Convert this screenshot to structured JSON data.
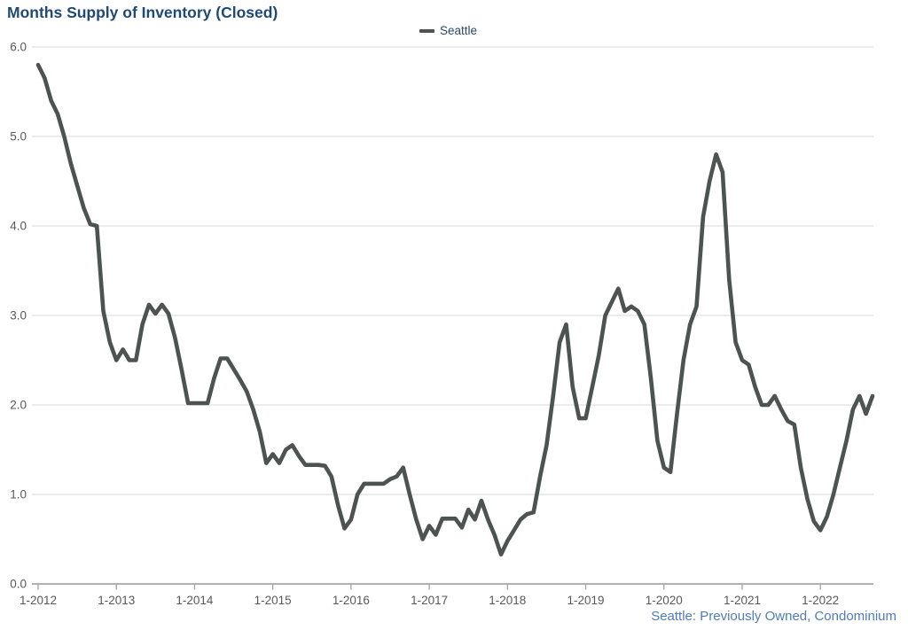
{
  "header": {
    "title": "Months Supply of Inventory (Closed)"
  },
  "legend": {
    "items": [
      {
        "label": "Seattle",
        "swatch_color": "#4d5350"
      }
    ]
  },
  "footer": {
    "caption": "Seattle: Previously Owned, Condominium"
  },
  "colors": {
    "title": "#1f4a75",
    "legend_text": "#2a4a68",
    "caption": "#4f7cb8",
    "line": "#4d5350",
    "gridline": "#d9d9d9",
    "axis": "#a6a6a6",
    "tick_text": "#595959"
  },
  "chart_data": {
    "type": "line",
    "title": "Months Supply of Inventory (Closed)",
    "xlabel": "",
    "ylabel": "",
    "ylim": [
      0,
      6
    ],
    "grid": "horizontal",
    "legend_position": "top-center",
    "caption": "Seattle: Previously Owned, Condominium",
    "y_tick_labels": [
      "0.0",
      "1.0",
      "2.0",
      "3.0",
      "4.0",
      "5.0",
      "6.0"
    ],
    "x_tick_labels": [
      "1-2012",
      "1-2013",
      "1-2014",
      "1-2015",
      "1-2016",
      "1-2017",
      "1-2018",
      "1-2019",
      "1-2020",
      "1-2021",
      "1-2022"
    ],
    "x_months_per_tick": 12,
    "series": [
      {
        "name": "Seattle",
        "color": "#4d5350",
        "frequency": "monthly",
        "x_start": "1-2012",
        "x_end": "9-2022",
        "values": [
          5.8,
          5.65,
          5.4,
          5.25,
          5.0,
          4.7,
          4.45,
          4.2,
          4.02,
          4.0,
          3.05,
          2.7,
          2.5,
          2.62,
          2.5,
          2.5,
          2.9,
          3.12,
          3.02,
          3.12,
          3.02,
          2.75,
          2.4,
          2.02,
          2.02,
          2.02,
          2.02,
          2.3,
          2.52,
          2.52,
          2.4,
          2.28,
          2.15,
          1.95,
          1.7,
          1.35,
          1.45,
          1.35,
          1.5,
          1.55,
          1.43,
          1.33,
          1.33,
          1.33,
          1.32,
          1.2,
          0.88,
          0.62,
          0.72,
          1.0,
          1.12,
          1.12,
          1.12,
          1.12,
          1.17,
          1.2,
          1.3,
          1.0,
          0.72,
          0.5,
          0.65,
          0.55,
          0.73,
          0.73,
          0.73,
          0.63,
          0.83,
          0.72,
          0.93,
          0.72,
          0.55,
          0.33,
          0.48,
          0.6,
          0.72,
          0.78,
          0.8,
          1.2,
          1.55,
          2.1,
          2.7,
          2.9,
          2.2,
          1.85,
          1.85,
          2.2,
          2.55,
          3.0,
          3.15,
          3.3,
          3.05,
          3.1,
          3.05,
          2.9,
          2.3,
          1.6,
          1.3,
          1.25,
          1.9,
          2.5,
          2.9,
          3.1,
          4.1,
          4.5,
          4.8,
          4.6,
          3.4,
          2.7,
          2.5,
          2.45,
          2.2,
          2.0,
          2.0,
          2.1,
          1.95,
          1.82,
          1.78,
          1.3,
          0.95,
          0.7,
          0.6,
          0.75,
          1.0,
          1.3,
          1.6,
          1.95,
          2.1,
          1.9,
          2.1
        ]
      }
    ]
  }
}
